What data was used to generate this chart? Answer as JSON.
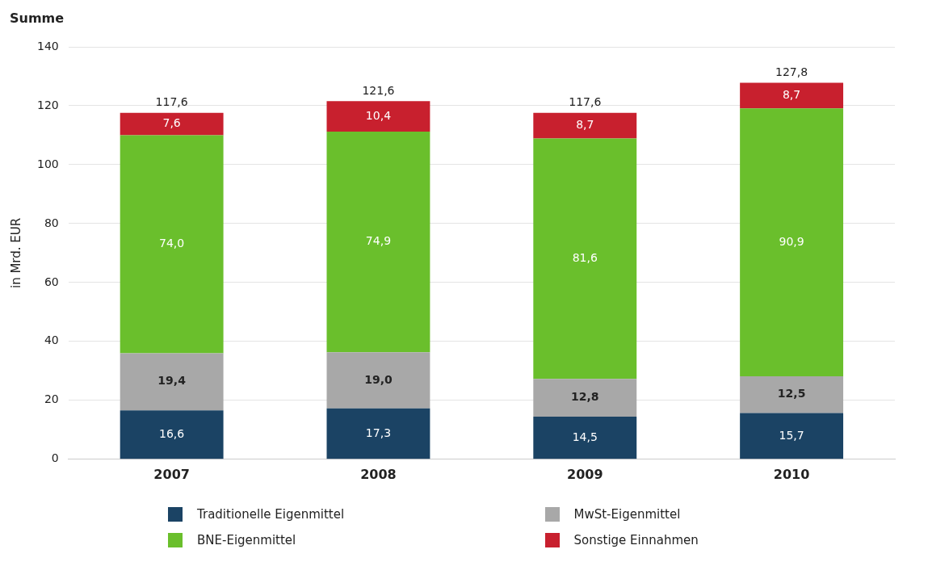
{
  "chart_data": {
    "type": "bar",
    "stacked": true,
    "ylabel": "in Mrd. EUR",
    "categories": [
      "2007",
      "2008",
      "2009",
      "2010"
    ],
    "series": [
      {
        "name": "Traditionelle Eigenmittel",
        "color": "#1b4364",
        "values": [
          16.6,
          17.3,
          14.5,
          15.7
        ],
        "value_labels": [
          "16,6",
          "17,3",
          "14,5",
          "15,7"
        ]
      },
      {
        "name": "MwSt-Eigenmittel",
        "color": "#a8a8a8",
        "values": [
          19.4,
          19.0,
          12.8,
          12.5
        ],
        "value_labels": [
          "19,4",
          "19,0",
          "12,8",
          "12,5"
        ]
      },
      {
        "name": "BNE-Eigenmittel",
        "color": "#6abf2c",
        "values": [
          74.0,
          74.9,
          81.6,
          90.9
        ],
        "value_labels": [
          "74,0",
          "74,9",
          "81,6",
          "90,9"
        ]
      },
      {
        "name": "Sonstige Einnahmen",
        "color": "#c8202e",
        "values": [
          7.6,
          10.4,
          8.7,
          8.7
        ],
        "value_labels": [
          "7,6",
          "10,4",
          "8,7",
          "8,7"
        ]
      }
    ],
    "totals": [
      "117,6",
      "121,6",
      "117,6",
      "127,8"
    ],
    "annotations": [
      "Summe"
    ],
    "ylim": [
      0,
      140
    ],
    "yticks": [
      0,
      20,
      40,
      60,
      80,
      100,
      120,
      140
    ],
    "grid": "y",
    "legend": "bottom"
  }
}
